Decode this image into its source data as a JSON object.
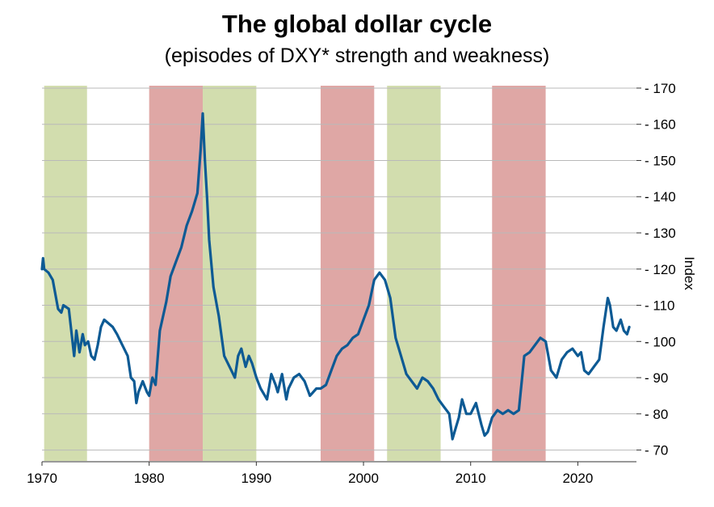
{
  "title": "The global dollar cycle",
  "subtitle": "(episodes of DXY* strength and weakness)",
  "chart_data": {
    "type": "line",
    "ylabel": "Index",
    "xlim": [
      1970,
      2026
    ],
    "ylim": [
      67,
      172
    ],
    "x_ticks": [
      1970,
      1980,
      1990,
      2000,
      2010,
      2020
    ],
    "y_ticks": [
      70,
      80,
      90,
      100,
      110,
      120,
      130,
      140,
      150,
      160,
      170
    ],
    "y_axis_side": "right",
    "grid": "horizontal",
    "line_color": "#0d5a94",
    "shaded_periods": [
      {
        "start": 1970.2,
        "end": 1974.2,
        "kind": "weakness",
        "color": "#d2ddae"
      },
      {
        "start": 1980.0,
        "end": 1985.0,
        "kind": "strength",
        "color": "#dfa7a5"
      },
      {
        "start": 1985.0,
        "end": 1990.0,
        "kind": "weakness",
        "color": "#d2ddae"
      },
      {
        "start": 1996.0,
        "end": 2001.0,
        "kind": "strength",
        "color": "#dfa7a5"
      },
      {
        "start": 2002.2,
        "end": 2007.2,
        "kind": "weakness",
        "color": "#d2ddae"
      },
      {
        "start": 2012.0,
        "end": 2017.0,
        "kind": "strength",
        "color": "#dfa7a5"
      }
    ],
    "series": [
      {
        "x": [
          1970.0,
          1970.1,
          1970.2,
          1970.6,
          1971.0,
          1971.5,
          1971.8,
          1972.0,
          1972.5,
          1973.0,
          1973.2,
          1973.5,
          1973.8,
          1974.0,
          1974.3,
          1974.6,
          1974.9,
          1975.2,
          1975.5,
          1975.8,
          1976.2,
          1976.6,
          1977.0,
          1977.5,
          1978.0,
          1978.3,
          1978.6,
          1978.8,
          1979.0,
          1979.4,
          1979.8,
          1980.0,
          1980.3,
          1980.6,
          1981.0,
          1981.3,
          1981.6,
          1982.0,
          1982.5,
          1983.0,
          1983.5,
          1984.0,
          1984.5,
          1984.8,
          1985.0,
          1985.2,
          1985.4,
          1985.6,
          1986.0,
          1986.5,
          1987.0,
          1987.5,
          1988.0,
          1988.3,
          1988.6,
          1989.0,
          1989.3,
          1989.6,
          1990.0,
          1990.4,
          1990.8,
          1991.0,
          1991.4,
          1991.8,
          1992.0,
          1992.4,
          1992.8,
          1993.0,
          1993.5,
          1994.0,
          1994.5,
          1995.0,
          1995.3,
          1995.6,
          1996.0,
          1996.5,
          1997.0,
          1997.5,
          1998.0,
          1998.5,
          1999.0,
          1999.5,
          2000.0,
          2000.5,
          2001.0,
          2001.5,
          2002.0,
          2002.5,
          2003.0,
          2003.5,
          2004.0,
          2004.5,
          2005.0,
          2005.5,
          2006.0,
          2006.5,
          2007.0,
          2007.5,
          2008.0,
          2008.3,
          2008.6,
          2008.9,
          2009.2,
          2009.6,
          2010.0,
          2010.5,
          2011.0,
          2011.3,
          2011.6,
          2012.0,
          2012.5,
          2013.0,
          2013.5,
          2014.0,
          2014.5,
          2015.0,
          2015.5,
          2016.0,
          2016.5,
          2017.0,
          2017.5,
          2018.0,
          2018.5,
          2019.0,
          2019.5,
          2020.0,
          2020.3,
          2020.6,
          2021.0,
          2021.5,
          2022.0,
          2022.4,
          2022.8,
          2023.0,
          2023.3,
          2023.6,
          2024.0,
          2024.3,
          2024.6,
          2024.8
        ],
        "y": [
          120,
          123,
          120,
          119,
          117,
          109,
          108,
          110,
          109,
          96,
          103,
          97,
          102,
          99,
          100,
          96,
          95,
          99,
          104,
          106,
          105,
          104,
          102,
          99,
          96,
          90,
          89,
          83,
          86,
          89,
          86,
          85,
          90,
          88,
          103,
          107,
          111,
          118,
          122,
          126,
          132,
          136,
          141,
          153,
          163,
          150,
          140,
          128,
          115,
          107,
          96,
          93,
          90,
          96,
          98,
          93,
          96,
          94,
          90,
          87,
          85,
          84,
          91,
          88,
          86,
          91,
          84,
          87,
          90,
          91,
          89,
          85,
          86,
          87,
          87,
          88,
          92,
          96,
          98,
          99,
          101,
          102,
          106,
          110,
          117,
          119,
          117,
          112,
          101,
          96,
          91,
          89,
          87,
          90,
          89,
          87,
          84,
          82,
          80,
          73,
          76,
          79,
          84,
          80,
          80,
          83,
          77,
          74,
          75,
          79,
          81,
          80,
          81,
          80,
          81,
          96,
          97,
          99,
          101,
          100,
          92,
          90,
          95,
          97,
          98,
          96,
          97,
          92,
          91,
          93,
          95,
          104,
          112,
          110,
          104,
          103,
          106,
          103,
          102,
          104
        ]
      }
    ]
  }
}
